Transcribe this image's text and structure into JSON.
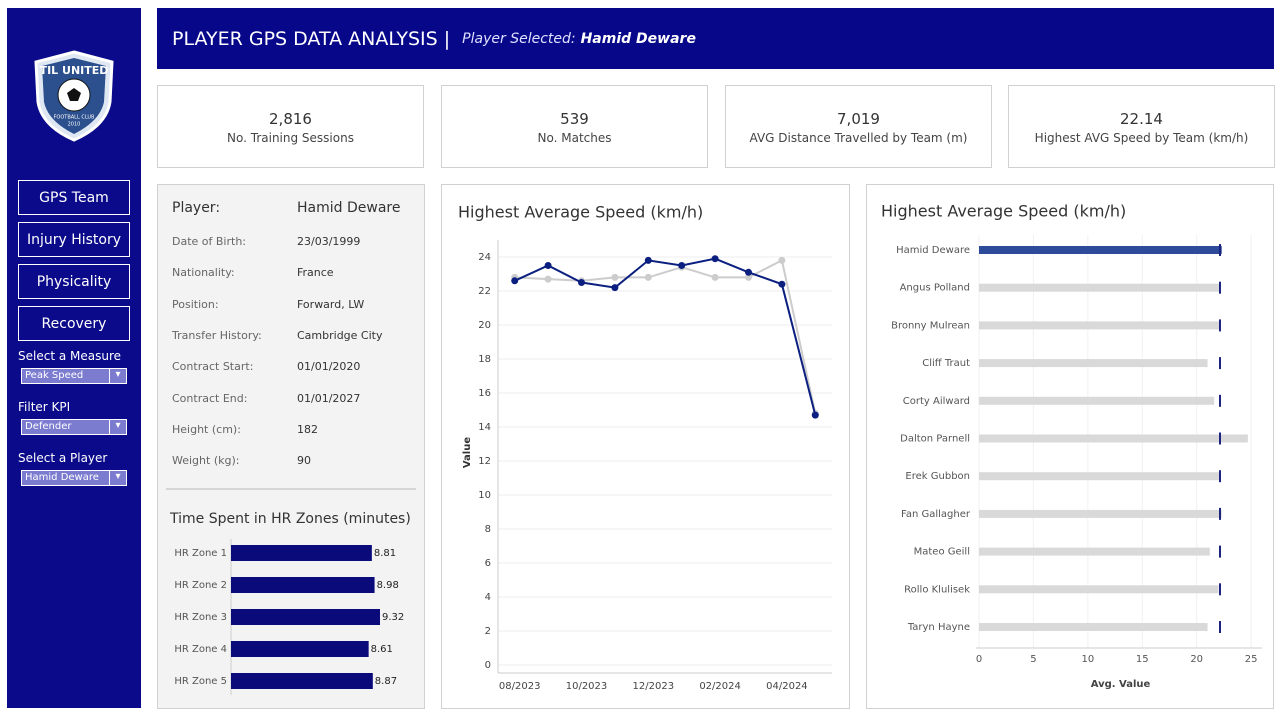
{
  "sidebar": {
    "logo": {
      "name": "TIL UNITED",
      "subtitle": "FOOTBALL CLUB",
      "year": "2010"
    },
    "nav": [
      "GPS Team",
      "Injury History",
      "Physicality",
      "Recovery"
    ],
    "filters": [
      {
        "label": "Select a Measure",
        "value": "Peak Speed"
      },
      {
        "label": "Filter KPI",
        "value": "Defender"
      },
      {
        "label": "Select a Player",
        "value": "Hamid Deware"
      }
    ]
  },
  "header": {
    "title": "PLAYER GPS DATA ANALYSIS |",
    "selected_label": "Player Selected:",
    "selected_player": "Hamid Deware"
  },
  "kpis": [
    {
      "value": "2,816",
      "label": "No. Training Sessions"
    },
    {
      "value": "539",
      "label": "No. Matches"
    },
    {
      "value": "7,019",
      "label": "AVG Distance Travelled by Team (m)"
    },
    {
      "value": "22.14",
      "label": "Highest AVG Speed by Team (km/h)"
    }
  ],
  "player": {
    "heading": "Player:",
    "name": "Hamid Deware",
    "fields": [
      {
        "label": "Date of Birth:",
        "value": "23/03/1999"
      },
      {
        "label": "Nationality:",
        "value": "France"
      },
      {
        "label": "Position:",
        "value": "Forward, LW"
      },
      {
        "label": "Transfer History:",
        "value": "Cambridge City"
      },
      {
        "label": "Contract Start:",
        "value": "01/01/2020"
      },
      {
        "label": "Contract End:",
        "value": "01/01/2027"
      },
      {
        "label": "Height (cm):",
        "value": "182"
      },
      {
        "label": "Weight (kg):",
        "value": "90"
      }
    ]
  },
  "chart_data": [
    {
      "type": "hbar",
      "title": "Time Spent in HR Zones (minutes)",
      "categories": [
        "HR Zone 1",
        "HR Zone 2",
        "HR Zone 3",
        "HR Zone 4",
        "HR Zone 5"
      ],
      "values": [
        8.81,
        8.98,
        9.32,
        8.61,
        8.87
      ],
      "color": "#0a0a7a"
    },
    {
      "type": "line",
      "title": "Highest Average Speed (km/h)",
      "y_label": "Value",
      "categories": [
        "08/2023",
        null,
        "10/2023",
        null,
        "12/2023",
        null,
        "02/2024",
        null,
        "04/2024",
        null
      ],
      "series": [
        {
          "color": "#cccccc",
          "values": [
            22.8,
            22.7,
            22.6,
            22.8,
            22.8,
            23.4,
            22.8,
            22.8,
            23.8,
            14.8
          ]
        },
        {
          "color": "#0b1f80",
          "values": [
            22.6,
            23.5,
            22.5,
            22.2,
            23.8,
            23.5,
            23.9,
            23.1,
            22.4,
            14.7
          ]
        }
      ],
      "ylim": [
        0,
        25
      ],
      "yticks": [
        0,
        2,
        4,
        6,
        8,
        10,
        12,
        14,
        16,
        18,
        20,
        22,
        24
      ],
      "grid": true
    },
    {
      "type": "hbar",
      "title": "Highest Average Speed (km/h)",
      "x_label": "Avg. Value",
      "categories": [
        "Hamid Deware",
        "Angus Polland",
        "Bronny Mulrean",
        "Cliff Traut",
        "Corty Ailward",
        "Dalton Parnell",
        "Erek Gubbon",
        "Fan Gallagher",
        "Mateo Geill",
        "Rollo Klulisek",
        "Taryn Hayne"
      ],
      "values": [
        22.3,
        22.1,
        22.1,
        21.0,
        21.6,
        24.7,
        22.1,
        22.3,
        21.2,
        22.0,
        21.0
      ],
      "colors": [
        "#2e4a9a",
        "#d9d9d9",
        "#d9d9d9",
        "#d9d9d9",
        "#d9d9d9",
        "#d9d9d9",
        "#d9d9d9",
        "#d9d9d9",
        "#d9d9d9",
        "#d9d9d9",
        "#d9d9d9"
      ],
      "reference": 22.14,
      "reference_color": "#1a237e",
      "xlim": [
        0,
        26
      ],
      "xticks": [
        0,
        5,
        10,
        15,
        20,
        25
      ],
      "grid": true
    }
  ]
}
